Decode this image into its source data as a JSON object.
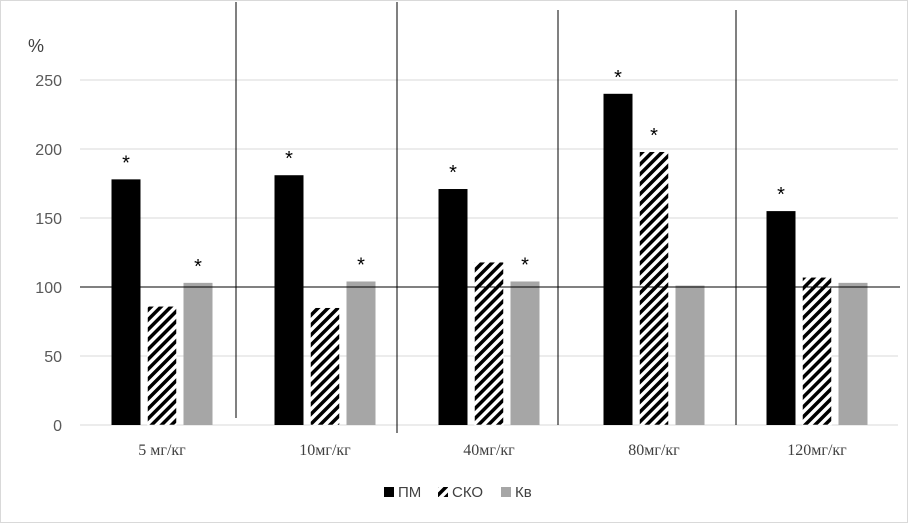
{
  "chart_data": {
    "type": "bar",
    "ylabel": "%",
    "ylim": [
      0,
      250
    ],
    "yticks": [
      0,
      50,
      100,
      150,
      200,
      250
    ],
    "grid": true,
    "reference_line": 100,
    "legend_position": "bottom",
    "categories": [
      "5 мг/кг",
      "10мг/кг",
      "40мг/кг",
      "80мг/кг",
      "120мг/кг"
    ],
    "series": [
      {
        "name": "ПМ",
        "color": "#000000",
        "pattern": "solid",
        "values": [
          178,
          181,
          171,
          240,
          155
        ],
        "significant": [
          true,
          true,
          true,
          true,
          true
        ]
      },
      {
        "name": "СКО",
        "color": "#000000",
        "pattern": "diagonal-hatch",
        "values": [
          86,
          85,
          118,
          198,
          107
        ],
        "significant": [
          false,
          false,
          false,
          true,
          false
        ]
      },
      {
        "name": "Кв",
        "color": "#a6a6a6",
        "pattern": "solid",
        "values": [
          103,
          104,
          104,
          101,
          103
        ],
        "significant": [
          true,
          true,
          true,
          false,
          false
        ]
      }
    ],
    "significance_marker": "*"
  }
}
